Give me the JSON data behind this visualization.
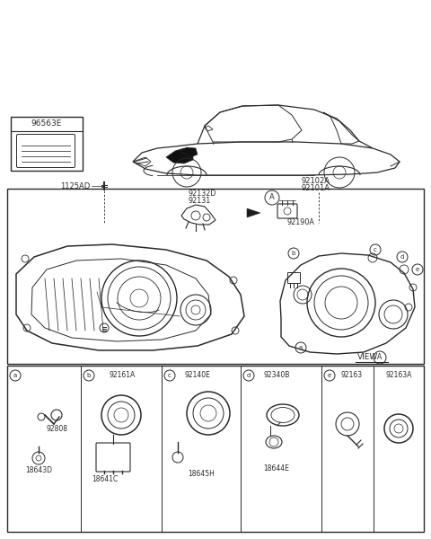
{
  "bg_color": "#ffffff",
  "line_color": "#2a2a2a",
  "text_color": "#2a2a2a",
  "parts": {
    "top_left_box": "96563E",
    "screw": "1125AD",
    "right_upper1": "92102A",
    "right_upper2": "92101A",
    "bracket_top": "92132D",
    "bracket_bot": "92131",
    "motor": "92190A",
    "view_label": "VIEW",
    "A": "A",
    "a": "a",
    "b": "b",
    "c": "c",
    "d": "d",
    "e": "e",
    "sub_a1": "92808",
    "sub_a2": "18643D",
    "sub_b1": "92161A",
    "sub_b2": "18641C",
    "sub_c1": "92140E",
    "sub_c2": "18645H",
    "sub_d1": "92340B",
    "sub_d2": "18644E",
    "sub_e1": "92163",
    "sub_e2": "92163A"
  }
}
